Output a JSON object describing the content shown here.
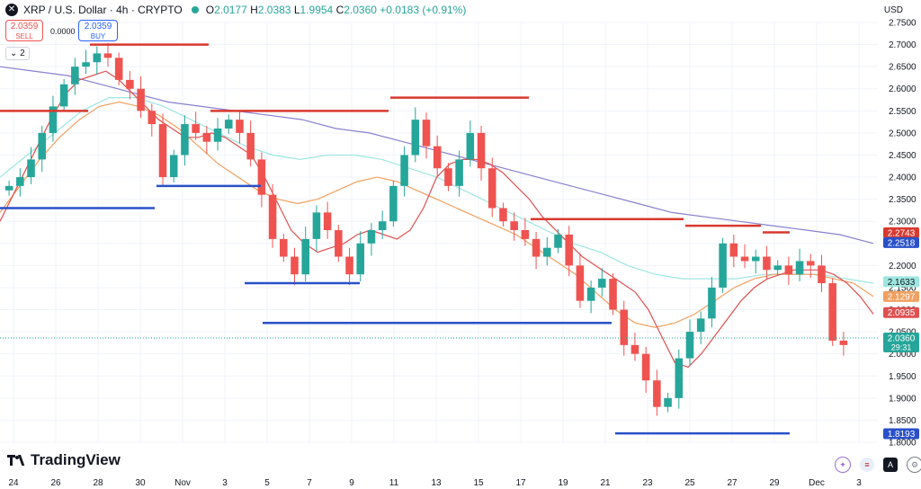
{
  "header": {
    "symbol": "XRP / U.S. Dollar · 4h · CRYPTO",
    "open_label": "O",
    "open": "2.0177",
    "high_label": "H",
    "high": "2.0383",
    "low_label": "L",
    "low": "1.9954",
    "close_label": "C",
    "close": "2.0360",
    "change": "+0.0183 (+0.91%)"
  },
  "quote": {
    "sell_price": "2.0359",
    "sell_label": "SELL",
    "spread": "0.0000",
    "buy_price": "2.0359",
    "buy_label": "BUY"
  },
  "indicators_toggle": "2",
  "currency": "USD",
  "brand": "TradingView",
  "toolbar_letter": "A",
  "colors": {
    "up": "#26a69a",
    "down": "#ef5350",
    "resistance": "#d9382f",
    "support": "#2950c8",
    "ma_red": "#e05050",
    "ma_orange": "#f0a060",
    "ma_cyan": "#9ee6e0",
    "ma_purple": "#8880d0"
  },
  "chart_data": {
    "type": "candlestick",
    "y_ticks": [
      "2.7500",
      "2.7000",
      "2.6500",
      "2.6000",
      "2.5500",
      "2.5000",
      "2.4500",
      "2.4000",
      "2.3500",
      "2.3000",
      "2.2500",
      "2.2000",
      "2.1500",
      "2.1000",
      "2.0500",
      "2.0000",
      "1.9500",
      "1.9000",
      "1.8500",
      "1.8000"
    ],
    "x_ticks": [
      "24",
      "26",
      "28",
      "30",
      "Nov",
      "3",
      "5",
      "7",
      "9",
      "11",
      "13",
      "15",
      "17",
      "19",
      "21",
      "23",
      "25",
      "27",
      "29",
      "Dec",
      "3"
    ],
    "ylim": [
      1.8,
      2.75
    ],
    "countdown": "29:31",
    "price_labels": [
      {
        "value": "2.2743",
        "color": "#d9382f"
      },
      {
        "value": "2.2518",
        "color": "#2950c8"
      },
      {
        "value": "2.1633",
        "color": "#9ee6e0"
      },
      {
        "value": "2.1297",
        "color": "#f0a060"
      },
      {
        "value": "2.0935",
        "color": "#e05050"
      },
      {
        "value": "2.0360",
        "color": "#26a69a"
      },
      {
        "value": "1.8193",
        "color": "#2950c8"
      }
    ],
    "close_series": [
      2.38,
      2.4,
      2.44,
      2.5,
      2.56,
      2.61,
      2.65,
      2.66,
      2.68,
      2.67,
      2.62,
      2.6,
      2.55,
      2.52,
      2.4,
      2.45,
      2.52,
      2.5,
      2.48,
      2.51,
      2.53,
      2.5,
      2.44,
      2.36,
      2.26,
      2.22,
      2.18,
      2.26,
      2.32,
      2.28,
      2.22,
      2.18,
      2.25,
      2.28,
      2.3,
      2.38,
      2.45,
      2.53,
      2.47,
      2.42,
      2.38,
      2.44,
      2.5,
      2.42,
      2.33,
      2.3,
      2.28,
      2.26,
      2.22,
      2.24,
      2.27,
      2.2,
      2.12,
      2.15,
      2.17,
      2.1,
      2.02,
      2.0,
      1.94,
      1.88,
      1.9,
      1.99,
      2.05,
      2.08,
      2.15,
      2.25,
      2.22,
      2.21,
      2.22,
      2.19,
      2.2,
      2.18,
      2.21,
      2.2,
      2.16,
      2.03,
      2.02
    ],
    "ma_red": [
      2.3,
      2.36,
      2.42,
      2.48,
      2.54,
      2.59,
      2.62,
      2.63,
      2.64,
      2.62,
      2.59,
      2.56,
      2.53,
      2.51,
      2.49,
      2.49,
      2.5,
      2.49,
      2.47,
      2.45,
      2.4,
      2.34,
      2.28,
      2.25,
      2.23,
      2.24,
      2.25,
      2.27,
      2.28,
      2.27,
      2.26,
      2.28,
      2.33,
      2.4,
      2.43,
      2.44,
      2.44,
      2.43,
      2.41,
      2.38,
      2.35,
      2.31,
      2.28,
      2.25,
      2.22,
      2.2,
      2.18,
      2.16,
      2.14,
      2.1,
      2.04,
      1.98,
      1.97,
      2.0,
      2.04,
      2.08,
      2.12,
      2.15,
      2.17,
      2.18,
      2.19,
      2.19,
      2.19,
      2.18,
      2.16,
      2.13,
      2.09
    ],
    "ma_orange": [
      2.32,
      2.38,
      2.44,
      2.49,
      2.53,
      2.56,
      2.57,
      2.56,
      2.54,
      2.51,
      2.47,
      2.43,
      2.4,
      2.37,
      2.35,
      2.34,
      2.35,
      2.37,
      2.39,
      2.4,
      2.39,
      2.37,
      2.35,
      2.33,
      2.31,
      2.29,
      2.27,
      2.24,
      2.21,
      2.18,
      2.14,
      2.1,
      2.07,
      2.06,
      2.07,
      2.09,
      2.12,
      2.15,
      2.17,
      2.18,
      2.18,
      2.18,
      2.17,
      2.16,
      2.13
    ],
    "ma_cyan": [
      2.4,
      2.45,
      2.5,
      2.55,
      2.58,
      2.58,
      2.56,
      2.53,
      2.5,
      2.47,
      2.45,
      2.44,
      2.45,
      2.45,
      2.44,
      2.42,
      2.4,
      2.37,
      2.34,
      2.31,
      2.28,
      2.25,
      2.23,
      2.2,
      2.18,
      2.17,
      2.17,
      2.17,
      2.18,
      2.18,
      2.18,
      2.17,
      2.16
    ],
    "ma_purple": [
      2.65,
      2.64,
      2.63,
      2.61,
      2.59,
      2.57,
      2.56,
      2.55,
      2.54,
      2.53,
      2.51,
      2.5,
      2.48,
      2.46,
      2.44,
      2.42,
      2.4,
      2.38,
      2.36,
      2.34,
      2.32,
      2.31,
      2.3,
      2.29,
      2.28,
      2.27,
      2.25
    ],
    "resistance_levels": [
      2.7,
      2.55,
      2.55,
      2.58,
      2.305,
      2.29,
      2.275
    ],
    "support_levels": [
      2.33,
      2.38,
      2.16,
      2.07,
      1.82
    ]
  }
}
